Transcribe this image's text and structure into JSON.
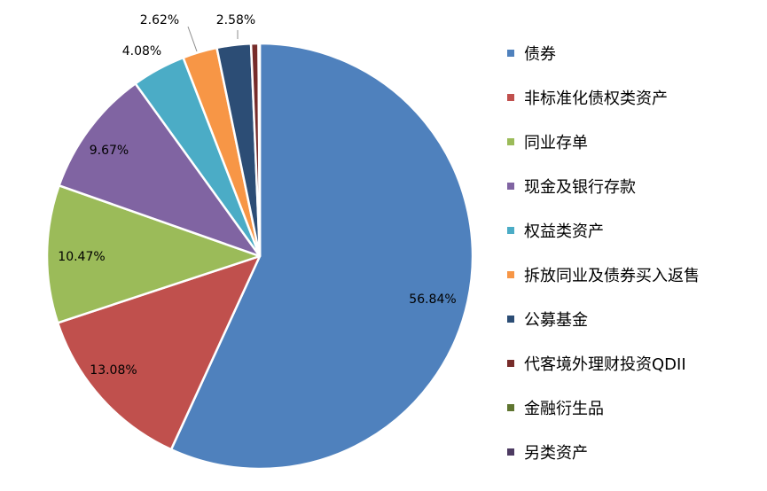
{
  "chart_data": {
    "type": "pie",
    "title": "",
    "legend_position": "right",
    "series": [
      {
        "label": "债券",
        "value": 56.84,
        "display": "56.84%",
        "color": "#4F81BD"
      },
      {
        "label": "非标准化债权类资产",
        "value": 13.08,
        "display": "13.08%",
        "color": "#C0504D"
      },
      {
        "label": "同业存单",
        "value": 10.47,
        "display": "10.47%",
        "color": "#9BBB59"
      },
      {
        "label": "现金及银行存款",
        "value": 9.67,
        "display": "9.67%",
        "color": "#8064A2"
      },
      {
        "label": "权益类资产",
        "value": 4.08,
        "display": "4.08%",
        "color": "#4BACC6"
      },
      {
        "label": "拆放同业及债券买入返售",
        "value": 2.62,
        "display": "2.62%",
        "color": "#F79646"
      },
      {
        "label": "公募基金",
        "value": 2.58,
        "display": "2.58%",
        "color": "#2C4D75"
      },
      {
        "label": "代客境外理财投资QDII",
        "value": 0.56,
        "display": "",
        "color": "#772C2A"
      },
      {
        "label": "金融衍生品",
        "value": 0.05,
        "display": "",
        "color": "#5F7530"
      },
      {
        "label": "另类资产",
        "value": 0.05,
        "display": "",
        "color": "#4D3B62"
      }
    ]
  }
}
